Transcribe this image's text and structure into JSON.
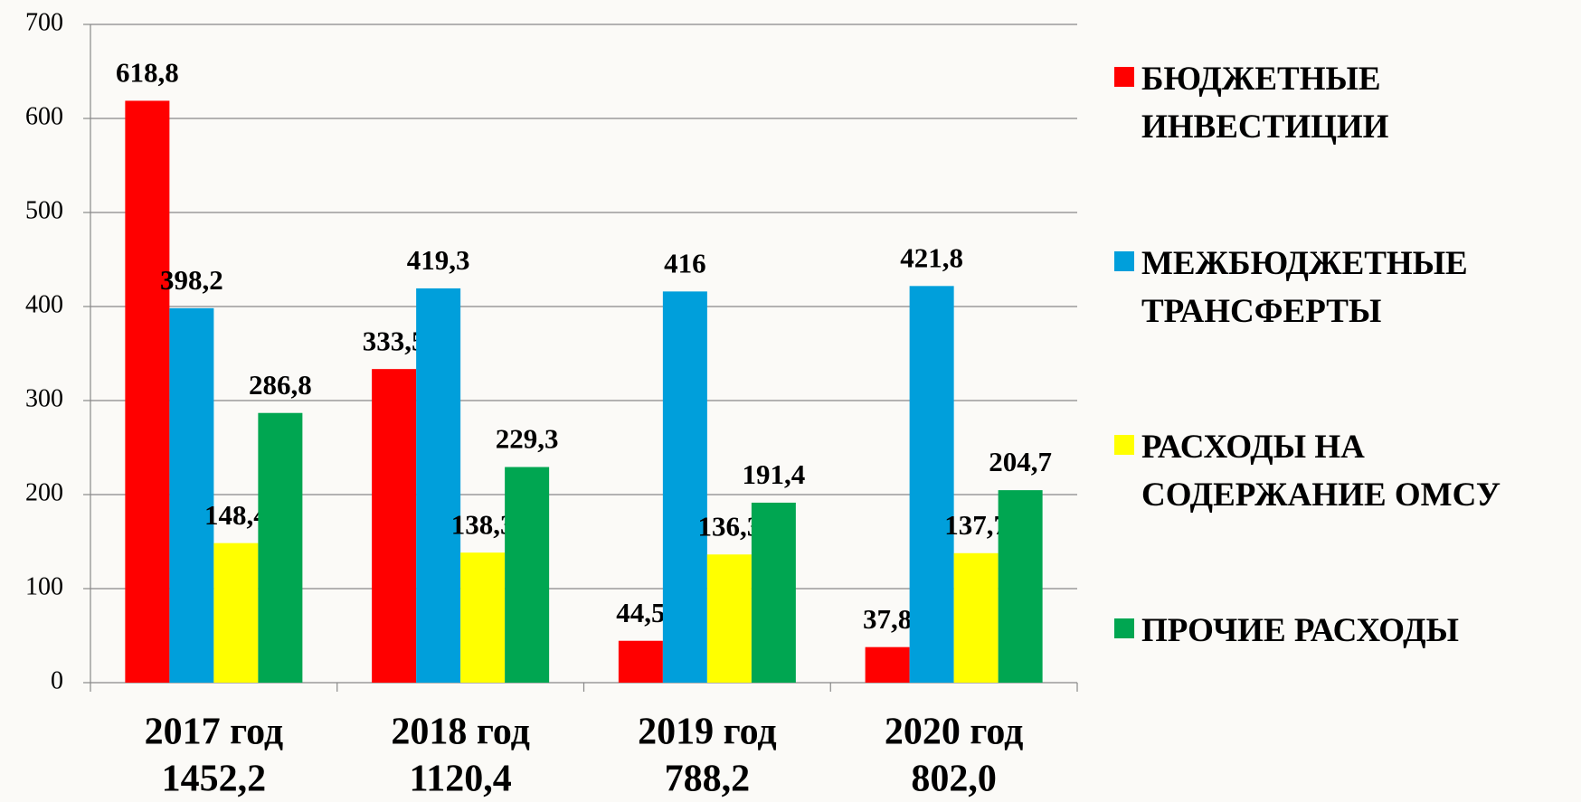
{
  "chart_data": {
    "type": "bar",
    "categories": [
      "2017 год",
      "2018 год",
      "2019 год",
      "2020 год"
    ],
    "category_totals": [
      "1452,2",
      "1120,4",
      "788,2",
      "802,0"
    ],
    "series": [
      {
        "name": "БЮДЖЕТНЫЕ ИНВЕСТИЦИИ",
        "color": "#ff0000",
        "values": [
          618.8,
          333.5,
          44.5,
          37.8
        ],
        "value_labels": [
          "618,8",
          "333,5",
          "44,5",
          "37,8"
        ]
      },
      {
        "name": "МЕЖБЮДЖЕТНЫЕ ТРАНСФЕРТЫ",
        "color": "#009fdb",
        "values": [
          398.2,
          419.3,
          416,
          421.8
        ],
        "value_labels": [
          "398,2",
          "419,3",
          "416",
          "421,8"
        ]
      },
      {
        "name": "РАСХОДЫ НА СОДЕРЖАНИЕ ОМСУ",
        "color": "#ffff00",
        "values": [
          148.4,
          138.3,
          136.3,
          137.7
        ],
        "value_labels": [
          "148,4",
          "138,3",
          "136,3",
          "137,7"
        ]
      },
      {
        "name": "ПРОЧИЕ РАСХОДЫ",
        "color": "#00a651",
        "values": [
          286.8,
          229.3,
          191.4,
          204.7
        ],
        "value_labels": [
          "286,8",
          "229,3",
          "191,4",
          "204,7"
        ]
      }
    ],
    "ylim": [
      0,
      700
    ],
    "yticks": [
      0,
      100,
      200,
      300,
      400,
      500,
      600,
      700
    ],
    "grid": true,
    "legend": "right"
  }
}
